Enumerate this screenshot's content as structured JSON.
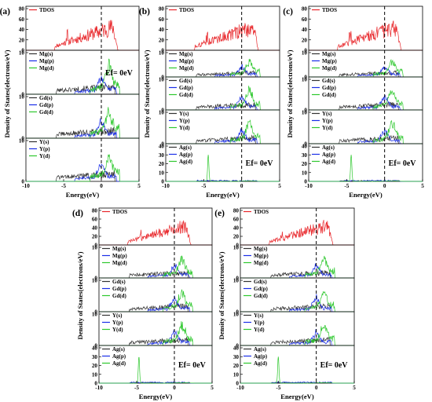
{
  "figure": {
    "panel_labels": [
      "(a)",
      "(b)",
      "(c)",
      "(d)",
      "(e)"
    ]
  },
  "chart_data": [
    {
      "panel": "(a)",
      "type": "line",
      "x_ticks": [
        -10,
        -5,
        0,
        5
      ],
      "xlim": [
        -10,
        5
      ],
      "xlabel": "Energy(eV)",
      "ylabel": "Density of States(electrons/eV)",
      "fermi_annotation": "Ef= 0eV",
      "fermi_subplot": 1,
      "subplots": [
        {
          "legend": [
            "TDOS"
          ],
          "yticks": [
            0,
            20,
            40,
            60,
            80
          ],
          "ylim": [
            0,
            80
          ]
        },
        {
          "legend": [
            "Mg(s)",
            "Mg(p)",
            "Mg(d)"
          ],
          "yticks": [
            0,
            10
          ],
          "ylim": [
            0,
            10
          ]
        },
        {
          "legend": [
            "Gd(s)",
            "Gd(p)",
            "Gd(d)"
          ],
          "yticks": [
            0,
            10
          ],
          "ylim": [
            0,
            10
          ]
        },
        {
          "legend": [
            "Y(s)",
            "Y(p)",
            "Y(d)"
          ],
          "yticks": [
            0,
            10
          ],
          "ylim": [
            0,
            10
          ]
        }
      ]
    },
    {
      "panel": "(b)",
      "type": "line",
      "x_ticks": [
        -10,
        -5,
        0,
        5
      ],
      "xlim": [
        -10,
        5
      ],
      "xlabel": "Energy(eV)",
      "ylabel": "Density of States(electrons/eV)",
      "fermi_annotation": "Ef= 0eV",
      "fermi_subplot": 4,
      "subplots": [
        {
          "legend": [
            "TDOS"
          ],
          "yticks": [
            0,
            20,
            40,
            60,
            80
          ],
          "ylim": [
            0,
            80
          ]
        },
        {
          "legend": [
            "Mg(s)",
            "Mg(p)",
            "Mg(d)"
          ],
          "yticks": [
            0,
            10
          ],
          "ylim": [
            0,
            10
          ]
        },
        {
          "legend": [
            "Gd(s)",
            "Gd(p)",
            "Gd(d)"
          ],
          "yticks": [
            0,
            10
          ],
          "ylim": [
            0,
            10
          ]
        },
        {
          "legend": [
            "Y(s)",
            "Y(p)",
            "Y(d)"
          ],
          "yticks": [
            0,
            10
          ],
          "ylim": [
            0,
            10
          ]
        },
        {
          "legend": [
            "Ag(s)",
            "Ag(p)",
            "Ag(d)"
          ],
          "yticks": [
            0,
            10,
            20,
            30,
            40
          ],
          "ylim": [
            0,
            40
          ],
          "ag_peak": -4.4
        }
      ]
    },
    {
      "panel": "(c)",
      "type": "line",
      "x_ticks": [
        -10,
        -5,
        0,
        5
      ],
      "xlim": [
        -10,
        5
      ],
      "xlabel": "Energy(eV)",
      "ylabel": "Density of States(electrons/eV)",
      "fermi_annotation": "Ef= 0eV",
      "fermi_subplot": 4,
      "subplots": [
        {
          "legend": [
            "TDOS"
          ],
          "yticks": [
            0,
            20,
            40,
            60,
            80
          ],
          "ylim": [
            0,
            80
          ]
        },
        {
          "legend": [
            "Mg(s)",
            "Mg(p)",
            "Mg(d)"
          ],
          "yticks": [
            0,
            10
          ],
          "ylim": [
            0,
            10
          ]
        },
        {
          "legend": [
            "Gd(s)",
            "Gd(p)",
            "Gd(d)"
          ],
          "yticks": [
            0,
            10
          ],
          "ylim": [
            0,
            10
          ]
        },
        {
          "legend": [
            "Y(s)",
            "Y(p)",
            "Y(d)"
          ],
          "yticks": [
            0,
            10
          ],
          "ylim": [
            0,
            10
          ]
        },
        {
          "legend": [
            "Ag(s)",
            "Ag(p)",
            "Ag(d)"
          ],
          "yticks": [
            0,
            10,
            20,
            30,
            40
          ],
          "ylim": [
            0,
            40
          ],
          "ag_peak": -4.4
        }
      ]
    },
    {
      "panel": "(d)",
      "type": "line",
      "x_ticks": [
        -10,
        -5,
        0,
        5
      ],
      "xlim": [
        -10,
        5
      ],
      "xlabel": "Energy(eV)",
      "ylabel": "Density of States(electrons/eV)",
      "fermi_annotation": "Ef= 0eV",
      "fermi_subplot": 4,
      "subplots": [
        {
          "legend": [
            "TDOS"
          ],
          "yticks": [
            0,
            20,
            40,
            60,
            80
          ],
          "ylim": [
            0,
            80
          ]
        },
        {
          "legend": [
            "Mg(s)",
            "Mg(p)",
            "Mg(d)"
          ],
          "yticks": [
            0,
            10
          ],
          "ylim": [
            0,
            10
          ]
        },
        {
          "legend": [
            "Gd(s)",
            "Gd(p)",
            "Gd(d)"
          ],
          "yticks": [
            0,
            10
          ],
          "ylim": [
            0,
            10
          ]
        },
        {
          "legend": [
            "Y(s)",
            "Y(p)",
            "Y(d)"
          ],
          "yticks": [
            0,
            10
          ],
          "ylim": [
            0,
            10
          ]
        },
        {
          "legend": [
            "Ag(s)",
            "Ag(p)",
            "Ag(d)"
          ],
          "yticks": [
            0,
            10,
            20,
            30,
            40
          ],
          "ylim": [
            0,
            40
          ],
          "ag_peak": -4.7
        }
      ]
    },
    {
      "panel": "(e)",
      "type": "line",
      "x_ticks": [
        -10,
        -5,
        0,
        5
      ],
      "xlim": [
        -10,
        5
      ],
      "xlabel": "Energy(eV)",
      "ylabel": "Density of States(electrons/eV)",
      "fermi_annotation": "Ef= 0eV",
      "fermi_subplot": 4,
      "subplots": [
        {
          "legend": [
            "TDOS"
          ],
          "yticks": [
            0,
            20,
            40,
            60,
            80
          ],
          "ylim": [
            0,
            80
          ]
        },
        {
          "legend": [
            "Mg(s)",
            "Mg(p)",
            "Mg(d)"
          ],
          "yticks": [
            0,
            10
          ],
          "ylim": [
            0,
            10
          ]
        },
        {
          "legend": [
            "Gd(s)",
            "Gd(p)",
            "Gd(d)"
          ],
          "yticks": [
            0,
            10
          ],
          "ylim": [
            0,
            10
          ]
        },
        {
          "legend": [
            "Y(s)",
            "Y(p)",
            "Y(d)"
          ],
          "yticks": [
            0,
            10
          ],
          "ylim": [
            0,
            10
          ]
        },
        {
          "legend": [
            "Ag(s)",
            "Ag(p)",
            "Ag(d)"
          ],
          "yticks": [
            0,
            10,
            20,
            30,
            40
          ],
          "ylim": [
            0,
            40
          ],
          "ag_peak": -5.0
        }
      ]
    }
  ],
  "colors": {
    "tdos": "#e8262a",
    "s": "#333333",
    "p": "#1a2ee8",
    "d": "#2ec82e",
    "fermi_line": "#000000"
  }
}
